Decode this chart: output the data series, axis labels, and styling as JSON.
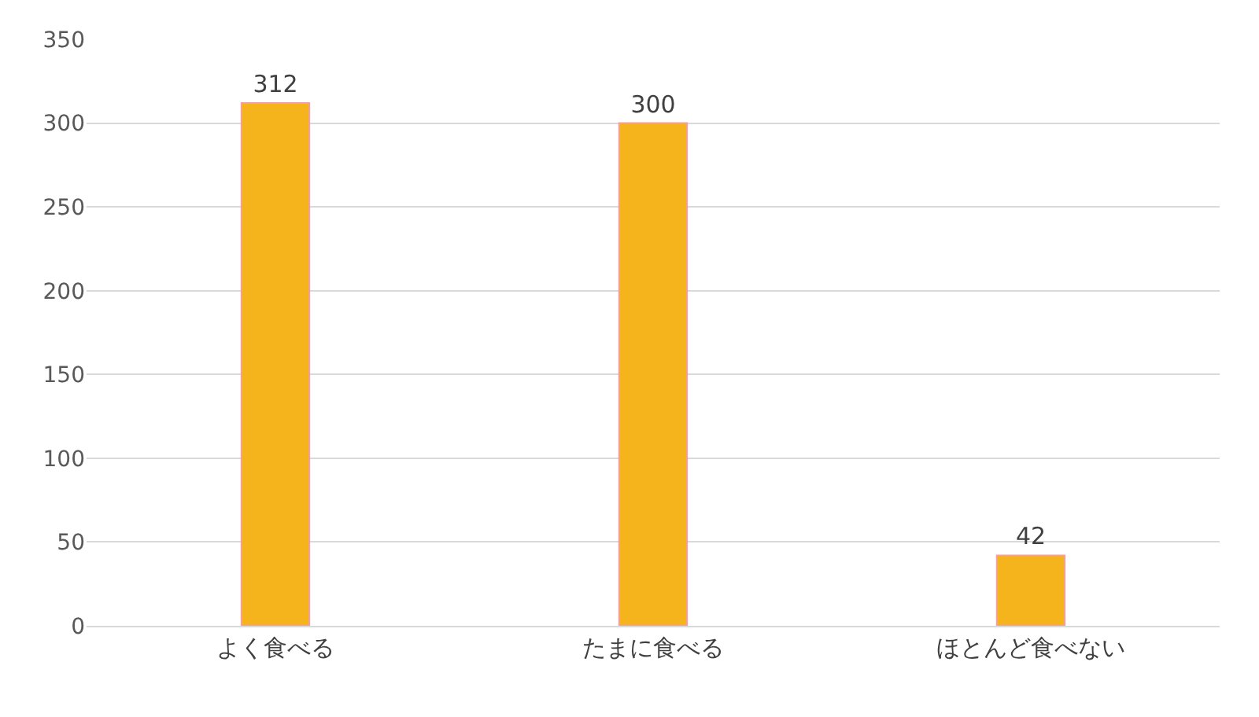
{
  "chart_data": {
    "type": "bar",
    "categories": [
      "よく食べる",
      "たまに食べる",
      "ほとんど食べない"
    ],
    "values": [
      312,
      300,
      42
    ],
    "color": "#f5b41c",
    "ylim": [
      0,
      350
    ],
    "yticks": [
      0,
      50,
      100,
      150,
      200,
      250,
      300,
      350
    ],
    "grid": "y",
    "data_labels": true,
    "legend": false
  }
}
